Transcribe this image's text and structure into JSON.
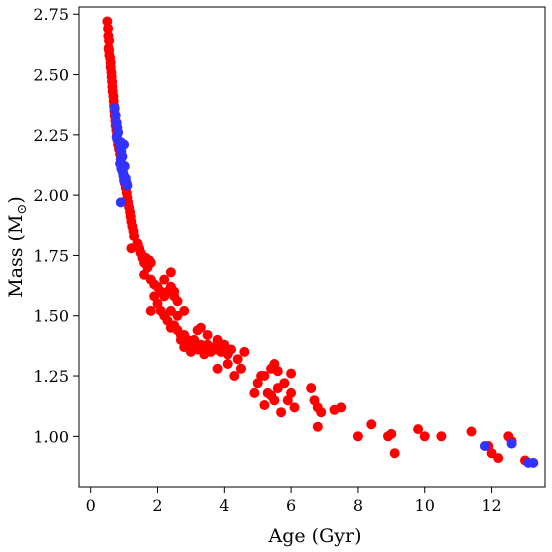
{
  "chart_data": {
    "type": "scatter",
    "title": "",
    "xlabel": "Age (Gyr)",
    "ylabel_main": "Mass (M",
    "ylabel_sub": "⊙",
    "ylabel_close": ")",
    "xlim": [
      -0.35,
      13.6
    ],
    "ylim": [
      0.79,
      2.78
    ],
    "xticks": [
      0,
      2,
      4,
      6,
      8,
      10,
      12
    ],
    "xtick_labels": [
      "0",
      "2",
      "4",
      "6",
      "8",
      "10",
      "12"
    ],
    "yticks": [
      1.0,
      1.25,
      1.5,
      1.75,
      2.0,
      2.25,
      2.5,
      2.75
    ],
    "ytick_labels": [
      "1.00",
      "1.25",
      "1.50",
      "1.75",
      "2.00",
      "2.25",
      "2.50",
      "2.75"
    ],
    "grid": false,
    "series": [
      {
        "color": "#ff0000",
        "points": [
          [
            0.5,
            2.72
          ],
          [
            0.52,
            2.69
          ],
          [
            0.53,
            2.66
          ],
          [
            0.55,
            2.64
          ],
          [
            0.54,
            2.61
          ],
          [
            0.55,
            2.6
          ],
          [
            0.56,
            2.58
          ],
          [
            0.58,
            2.57
          ],
          [
            0.6,
            2.55
          ],
          [
            0.6,
            2.53
          ],
          [
            0.62,
            2.51
          ],
          [
            0.63,
            2.49
          ],
          [
            0.64,
            2.47
          ],
          [
            0.65,
            2.45
          ],
          [
            0.66,
            2.43
          ],
          [
            0.68,
            2.41
          ],
          [
            0.69,
            2.39
          ],
          [
            0.7,
            2.37
          ],
          [
            0.71,
            2.35
          ],
          [
            0.72,
            2.33
          ],
          [
            0.74,
            2.31
          ],
          [
            0.75,
            2.29
          ],
          [
            0.77,
            2.27
          ],
          [
            0.79,
            2.25
          ],
          [
            0.8,
            2.23
          ],
          [
            0.82,
            2.21
          ],
          [
            0.85,
            2.19
          ],
          [
            0.88,
            2.17
          ],
          [
            0.9,
            2.15
          ],
          [
            0.93,
            2.13
          ],
          [
            0.95,
            2.11
          ],
          [
            0.98,
            2.09
          ],
          [
            1.0,
            2.07
          ],
          [
            1.02,
            2.05
          ],
          [
            1.05,
            2.03
          ],
          [
            1.08,
            2.01
          ],
          [
            1.1,
            1.99
          ],
          [
            1.12,
            1.97
          ],
          [
            1.15,
            1.95
          ],
          [
            1.18,
            1.93
          ],
          [
            1.2,
            1.91
          ],
          [
            1.22,
            1.89
          ],
          [
            1.25,
            1.87
          ],
          [
            1.28,
            1.85
          ],
          [
            1.3,
            1.83
          ],
          [
            1.22,
            1.78
          ],
          [
            1.4,
            1.8
          ],
          [
            1.45,
            1.78
          ],
          [
            1.5,
            1.76
          ],
          [
            1.55,
            1.74
          ],
          [
            1.6,
            1.72
          ],
          [
            1.65,
            1.74
          ],
          [
            1.7,
            1.7
          ],
          [
            1.75,
            1.73
          ],
          [
            1.8,
            1.72
          ],
          [
            1.6,
            1.67
          ],
          [
            1.8,
            1.65
          ],
          [
            1.9,
            1.63
          ],
          [
            2.0,
            1.62
          ],
          [
            2.1,
            1.6
          ],
          [
            2.2,
            1.58
          ],
          [
            2.3,
            1.6
          ],
          [
            2.4,
            1.62
          ],
          [
            2.5,
            1.58
          ],
          [
            2.6,
            1.56
          ],
          [
            1.9,
            1.58
          ],
          [
            2.0,
            1.55
          ],
          [
            2.1,
            1.52
          ],
          [
            2.2,
            1.5
          ],
          [
            2.3,
            1.48
          ],
          [
            1.8,
            1.52
          ],
          [
            2.4,
            1.45
          ],
          [
            2.5,
            1.46
          ],
          [
            2.6,
            1.44
          ],
          [
            2.7,
            1.42
          ],
          [
            2.8,
            1.42
          ],
          [
            2.9,
            1.4
          ],
          [
            3.0,
            1.38
          ],
          [
            3.1,
            1.4
          ],
          [
            3.2,
            1.44
          ],
          [
            3.3,
            1.38
          ],
          [
            3.4,
            1.36
          ],
          [
            3.5,
            1.38
          ],
          [
            3.6,
            1.35
          ],
          [
            3.7,
            1.37
          ],
          [
            3.8,
            1.36
          ],
          [
            3.9,
            1.35
          ],
          [
            4.0,
            1.38
          ],
          [
            4.1,
            1.34
          ],
          [
            4.2,
            1.36
          ],
          [
            2.8,
            1.37
          ],
          [
            3.0,
            1.35
          ],
          [
            3.2,
            1.36
          ],
          [
            3.4,
            1.34
          ],
          [
            2.7,
            1.4
          ],
          [
            2.4,
            1.52
          ],
          [
            2.6,
            1.5
          ],
          [
            2.2,
            1.65
          ],
          [
            2.4,
            1.68
          ],
          [
            2.5,
            1.6
          ],
          [
            2.8,
            1.52
          ],
          [
            3.3,
            1.45
          ],
          [
            3.5,
            1.42
          ],
          [
            3.8,
            1.4
          ],
          [
            4.1,
            1.3
          ],
          [
            4.4,
            1.32
          ],
          [
            4.5,
            1.28
          ],
          [
            4.6,
            1.35
          ],
          [
            4.3,
            1.25
          ],
          [
            3.8,
            1.28
          ],
          [
            5.0,
            1.22
          ],
          [
            5.2,
            1.25
          ],
          [
            5.4,
            1.28
          ],
          [
            5.5,
            1.3
          ],
          [
            5.6,
            1.27
          ],
          [
            5.3,
            1.18
          ],
          [
            5.5,
            1.15
          ],
          [
            5.6,
            1.2
          ],
          [
            5.7,
            1.1
          ],
          [
            5.8,
            1.22
          ],
          [
            5.9,
            1.15
          ],
          [
            6.0,
            1.18
          ],
          [
            6.1,
            1.12
          ],
          [
            6.0,
            1.26
          ],
          [
            5.1,
            1.25
          ],
          [
            4.9,
            1.18
          ],
          [
            5.2,
            1.13
          ],
          [
            5.4,
            1.17
          ],
          [
            6.6,
            1.2
          ],
          [
            6.7,
            1.15
          ],
          [
            6.8,
            1.12
          ],
          [
            6.9,
            1.1
          ],
          [
            6.8,
            1.04
          ],
          [
            7.3,
            1.11
          ],
          [
            7.5,
            1.12
          ],
          [
            8.0,
            1.0
          ],
          [
            8.4,
            1.05
          ],
          [
            8.9,
            1.0
          ],
          [
            9.0,
            1.01
          ],
          [
            9.1,
            0.93
          ],
          [
            9.8,
            1.03
          ],
          [
            10.0,
            1.0
          ],
          [
            10.5,
            1.0
          ],
          [
            11.4,
            1.02
          ],
          [
            12.0,
            0.93
          ],
          [
            12.2,
            0.91
          ],
          [
            12.5,
            1.0
          ],
          [
            12.6,
            0.98
          ],
          [
            13.0,
            0.9
          ],
          [
            11.9,
            0.96
          ]
        ]
      },
      {
        "color": "#3333ff",
        "points": [
          [
            0.72,
            2.36
          ],
          [
            0.75,
            2.33
          ],
          [
            0.78,
            2.3
          ],
          [
            0.8,
            2.28
          ],
          [
            0.82,
            2.26
          ],
          [
            0.78,
            2.24
          ],
          [
            0.85,
            2.22
          ],
          [
            0.88,
            2.2
          ],
          [
            0.9,
            2.22
          ],
          [
            0.92,
            2.18
          ],
          [
            0.95,
            2.16
          ],
          [
            1.0,
            2.21
          ],
          [
            0.9,
            2.15
          ],
          [
            0.88,
            2.13
          ],
          [
            0.92,
            2.11
          ],
          [
            0.95,
            2.1
          ],
          [
            0.98,
            2.08
          ],
          [
            1.0,
            2.06
          ],
          [
            1.02,
            2.12
          ],
          [
            1.05,
            2.07
          ],
          [
            1.08,
            2.05
          ],
          [
            1.1,
            2.04
          ],
          [
            0.9,
            1.97
          ],
          [
            11.8,
            0.96
          ],
          [
            12.6,
            0.97
          ],
          [
            13.1,
            0.89
          ],
          [
            13.25,
            0.89
          ]
        ]
      }
    ]
  }
}
